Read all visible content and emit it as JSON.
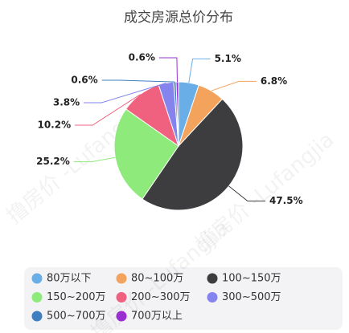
{
  "chart_data": {
    "type": "pie",
    "title": "成交房源总价分布",
    "watermark": "撸房价 -Lufangjia",
    "categories": [
      "80万以下",
      "80~100万",
      "100~150万",
      "150~200万",
      "200~300万",
      "300~500万",
      "500~700万",
      "700万以上"
    ],
    "values": [
      5.1,
      6.8,
      47.5,
      25.2,
      10.2,
      3.8,
      0.6,
      0.6
    ],
    "value_labels": [
      "5.1%",
      "6.8%",
      "47.5%",
      "25.2%",
      "10.2%",
      "3.8%",
      "0.6%",
      "0.6%"
    ],
    "colors": [
      "#6aaee8",
      "#f4a35c",
      "#3d3d40",
      "#8fea7c",
      "#f0607f",
      "#8583ee",
      "#3f7fbf",
      "#9a2fd0"
    ],
    "legend": "bottom"
  }
}
